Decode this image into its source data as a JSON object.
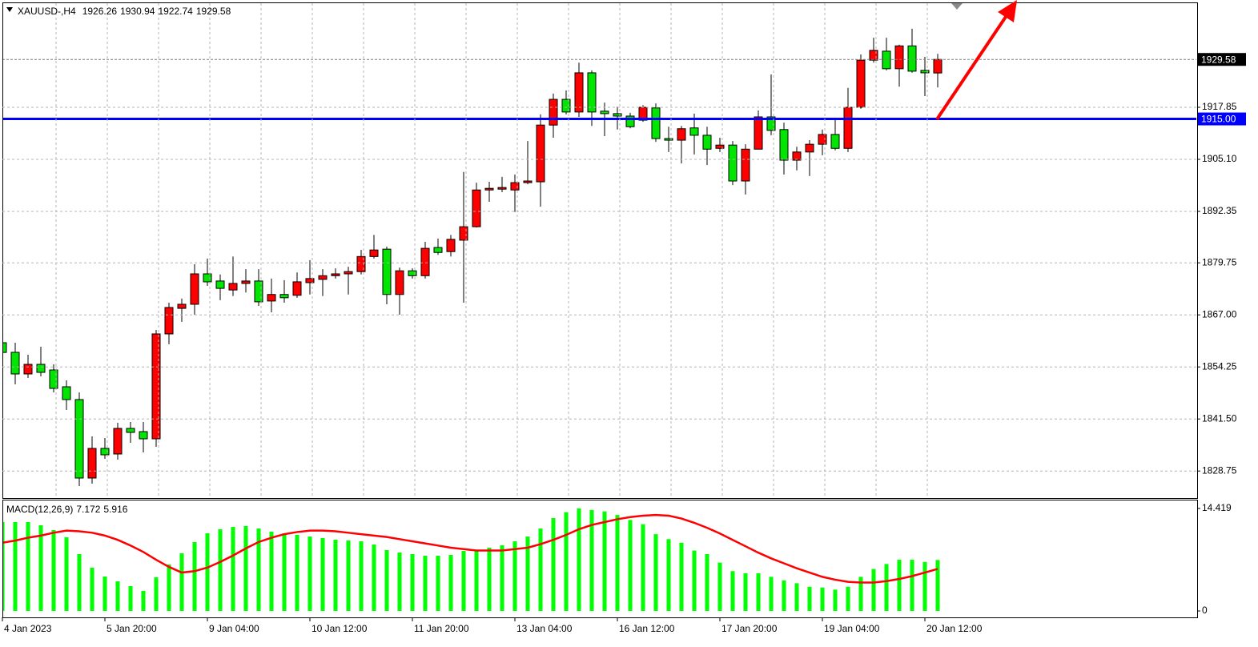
{
  "chart_data": [
    {
      "type": "candlestick",
      "title": "XAUUSD-,H4",
      "categories": [
        "4 Jan 2023",
        null,
        null,
        null,
        null,
        null,
        null,
        null,
        "5 Jan 20:00",
        null,
        null,
        null,
        null,
        null,
        null,
        null,
        "9 Jan 04:00",
        null,
        null,
        null,
        null,
        null,
        null,
        null,
        "10 Jan 12:00",
        null,
        null,
        null,
        null,
        null,
        null,
        null,
        "11 Jan 20:00",
        null,
        null,
        null,
        null,
        null,
        null,
        null,
        "13 Jan 04:00",
        null,
        null,
        null,
        null,
        null,
        null,
        null,
        "16 Jan 12:00",
        null,
        null,
        null,
        null,
        null,
        null,
        null,
        "17 Jan 20:00",
        null,
        null,
        null,
        null,
        null,
        null,
        null,
        "19 Jan 04:00",
        null,
        null,
        null,
        null,
        null,
        null,
        null,
        "20 Jan 12:00",
        null
      ],
      "open": [
        1860.18,
        1857.83,
        1852.53,
        1854.88,
        1853.51,
        1849.39,
        1846.25,
        1827.03,
        1834.29,
        1832.92,
        1839.19,
        1838.4,
        1836.64,
        1862.34,
        1868.6,
        1869.6,
        1877.05,
        1875.3,
        1873.1,
        1874.7,
        1875.3,
        1870.4,
        1872.0,
        1871.8,
        1874.9,
        1875.7,
        1876.6,
        1877.05,
        1877.6,
        1881.3,
        1883.1,
        1872.0,
        1877.8,
        1876.6,
        1883.5,
        1882.5,
        1885.3,
        1888.6,
        1897.6,
        1897.8,
        1897.6,
        1899.4,
        1899.6,
        1913.5,
        1919.8,
        1916.7,
        1926.3,
        1916.9,
        1916.3,
        1915.7,
        1914.7,
        1917.7,
        1910.2,
        1909.8,
        1912.8,
        1911.0,
        1907.8,
        1908.6,
        1899.8,
        1907.6,
        1915.5,
        1912.4,
        1904.9,
        1906.9,
        1908.8,
        1911.2,
        1907.8,
        1917.85,
        1929.4,
        1931.6,
        1927.3,
        1932.9,
        1926.9,
        1926.26
      ],
      "high": [
        1862.7,
        1860.18,
        1857.24,
        1859.2,
        1854.88,
        1850.96,
        1848.0,
        1837.23,
        1836.84,
        1840.56,
        1840.76,
        1840.76,
        1863.32,
        1870.0,
        1871.0,
        1879.4,
        1880.8,
        1876.9,
        1881.3,
        1878.2,
        1878.2,
        1875.9,
        1875.5,
        1877.4,
        1880.4,
        1878.2,
        1878.4,
        1878.8,
        1882.9,
        1886.6,
        1883.7,
        1878.6,
        1878.4,
        1884.9,
        1885.7,
        1886.6,
        1902.0,
        1899.4,
        1899.6,
        1900.8,
        1901.4,
        1909.6,
        1916.1,
        1921.2,
        1922.0,
        1928.8,
        1926.9,
        1919.0,
        1918.0,
        1916.5,
        1918.4,
        1918.8,
        1913.1,
        1913.3,
        1916.3,
        1913.1,
        1910.4,
        1909.6,
        1908.8,
        1917.1,
        1925.9,
        1914.1,
        1908.2,
        1909.8,
        1912.4,
        1915.1,
        1922.6,
        1930.8,
        1934.9,
        1934.9,
        1933.2,
        1937.1,
        1930.2,
        1930.94
      ],
      "low": [
        1848.6,
        1849.98,
        1851.55,
        1851.94,
        1848.0,
        1843.7,
        1825.07,
        1825.66,
        1831.74,
        1831.54,
        1835.66,
        1833.3,
        1834.68,
        1859.8,
        1865.3,
        1867.05,
        1874.1,
        1870.6,
        1871.6,
        1872.5,
        1869.2,
        1867.6,
        1870.0,
        1871.2,
        1872.0,
        1871.6,
        1875.9,
        1872.0,
        1876.9,
        1880.8,
        1869.6,
        1867.05,
        1875.9,
        1875.9,
        1881.7,
        1881.3,
        1870.0,
        1888.4,
        1894.7,
        1897.05,
        1892.2,
        1899.0,
        1893.5,
        1910.4,
        1916.1,
        1915.5,
        1913.3,
        1910.8,
        1912.4,
        1912.7,
        1914.3,
        1909.4,
        1906.9,
        1904.1,
        1906.3,
        1903.7,
        1906.9,
        1898.8,
        1896.5,
        1907.6,
        1911.0,
        1901.4,
        1902.4,
        1901.0,
        1906.1,
        1907.3,
        1906.9,
        1917.5,
        1928.8,
        1926.9,
        1922.9,
        1926.3,
        1920.6,
        1922.74
      ],
      "close": [
        1857.8,
        1852.53,
        1854.88,
        1852.92,
        1848.99,
        1846.25,
        1827.03,
        1834.29,
        1832.72,
        1839.19,
        1838.21,
        1836.64,
        1862.34,
        1868.81,
        1869.6,
        1877.05,
        1875.09,
        1873.5,
        1874.7,
        1875.3,
        1870.2,
        1872.0,
        1871.2,
        1875.1,
        1875.9,
        1876.6,
        1877.05,
        1877.6,
        1881.3,
        1882.9,
        1872.0,
        1877.8,
        1876.6,
        1883.3,
        1882.3,
        1885.5,
        1888.6,
        1897.6,
        1898.0,
        1898.2,
        1899.4,
        1899.8,
        1913.5,
        1919.8,
        1916.7,
        1926.3,
        1916.7,
        1916.3,
        1915.7,
        1913.1,
        1917.85,
        1910.2,
        1909.8,
        1912.6,
        1911.0,
        1907.6,
        1908.6,
        1899.8,
        1907.6,
        1915.5,
        1912.2,
        1904.9,
        1906.9,
        1908.8,
        1911.2,
        1907.8,
        1917.85,
        1929.4,
        1931.8,
        1927.3,
        1932.9,
        1926.7,
        1926.3,
        1929.58
      ],
      "up_color": "#ff0000",
      "down_color": "#00e600",
      "ylim": [
        1822.32,
        1943.55
      ],
      "yticks": [
        1917.85,
        {
          "value": 1905.1,
          "label": "1905.10"
        },
        1892.35,
        1879.75,
        {
          "value": 1867,
          "label": "1867.00"
        },
        1854.25,
        {
          "value": 1841.5,
          "label": "1841.50"
        },
        1828.75
      ],
      "grid": true,
      "hlines": [
        {
          "value": 1915,
          "label": "1915.00",
          "color": "#0000ff"
        }
      ]
    },
    {
      "type": "macd",
      "title": "MACD(12,26,9)",
      "values": [
        12.5,
        12.5,
        12.5,
        12.05,
        11.37,
        10.36,
        8.0,
        6.08,
        4.84,
        4.17,
        3.49,
        2.82,
        4.73,
        6.53,
        8.11,
        9.68,
        10.92,
        11.49,
        11.82,
        11.94,
        11.6,
        11.15,
        10.92,
        10.7,
        10.47,
        10.25,
        10.02,
        9.91,
        9.8,
        9.35,
        8.56,
        8.22,
        8.0,
        7.77,
        7.77,
        7.88,
        8.45,
        8.56,
        8.9,
        9.23,
        9.8,
        10.47,
        11.6,
        13.06,
        13.9,
        14.419,
        14.2,
        14.0,
        13.5,
        12.8,
        12.2,
        10.8,
        10.1,
        9.6,
        8.5,
        8.0,
        6.8,
        5.6,
        5.3,
        5.3,
        4.8,
        4.3,
        3.9,
        3.4,
        3.3,
        3.0,
        3.4,
        4.8,
        5.9,
        6.6,
        7.2,
        7.2,
        6.9,
        7.172
      ],
      "color": "#00ff00",
      "signal": [
        9.6,
        9.9,
        10.3,
        10.6,
        11.0,
        11.3,
        11.2,
        11.0,
        10.6,
        10.0,
        9.2,
        8.3,
        7.2,
        6.2,
        5.4,
        5.6,
        6.1,
        6.9,
        7.8,
        8.8,
        9.7,
        10.3,
        10.8,
        11.1,
        11.3,
        11.3,
        11.2,
        11.0,
        10.8,
        10.6,
        10.4,
        10.1,
        9.8,
        9.5,
        9.2,
        8.9,
        8.7,
        8.5,
        8.5,
        8.5,
        8.7,
        8.9,
        9.4,
        10.0,
        10.7,
        11.5,
        12.1,
        12.5,
        12.9,
        13.2,
        13.4,
        13.5,
        13.4,
        13.0,
        12.4,
        11.7,
        10.9,
        10.0,
        9.1,
        8.2,
        7.4,
        6.7,
        6.0,
        5.4,
        4.8,
        4.4,
        4.1,
        4.0,
        4.0,
        4.2,
        4.5,
        4.9,
        5.4,
        5.916
      ],
      "signal_color": "#ff0000",
      "ylim": [
        -0.9,
        15.54
      ],
      "yticks": [
        14.419,
        0
      ]
    }
  ]
}
